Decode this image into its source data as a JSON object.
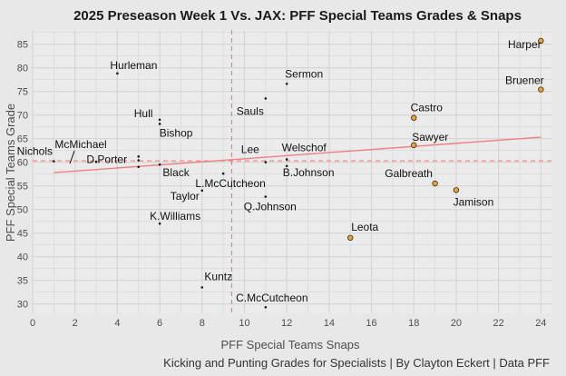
{
  "chart_data": {
    "type": "scatter",
    "title": "2025 Preseason Week 1 Vs. JAX: PFF Special Teams Grades & Snaps",
    "xlabel": "PFF Special Teams Snaps",
    "ylabel": "PFF Special Teams Grade",
    "caption": "Kicking and Punting Grades for Specialists | By Clayton Eckert | Data PFF",
    "xlim": [
      0,
      24.5
    ],
    "ylim": [
      28,
      88
    ],
    "xticks": [
      "0",
      "2",
      "4",
      "6",
      "8",
      "10",
      "12",
      "14",
      "16",
      "18",
      "20",
      "22",
      "24"
    ],
    "yticks": [
      "30",
      "35",
      "40",
      "45",
      "50",
      "55",
      "60",
      "65",
      "70",
      "75",
      "80",
      "85"
    ],
    "grid": true,
    "points": [
      {
        "label": "Harper",
        "x": 24,
        "y": 85.7,
        "specialist": true
      },
      {
        "label": "Bruener",
        "x": 24,
        "y": 75.4,
        "specialist": true
      },
      {
        "label": "Castro",
        "x": 18,
        "y": 69.4,
        "specialist": true
      },
      {
        "label": "Sawyer",
        "x": 18,
        "y": 63.6,
        "specialist": true
      },
      {
        "label": "Galbreath",
        "x": 19,
        "y": 55.5,
        "specialist": true
      },
      {
        "label": "Jamison",
        "x": 20,
        "y": 54.1,
        "specialist": true
      },
      {
        "label": "Leota",
        "x": 15,
        "y": 44.0,
        "specialist": true
      },
      {
        "label": "Hurleman",
        "x": 4,
        "y": 78.8,
        "specialist": false
      },
      {
        "label": "Sermon",
        "x": 12,
        "y": 76.6,
        "specialist": false
      },
      {
        "label": "Sauls",
        "x": 11,
        "y": 73.5,
        "specialist": false
      },
      {
        "label": "Hull",
        "x": 6,
        "y": 69.0,
        "specialist": false
      },
      {
        "label": "Bishop",
        "x": 6,
        "y": 68.1,
        "specialist": false
      },
      {
        "label": "Nichols",
        "x": 1,
        "y": 60.2,
        "specialist": false
      },
      {
        "label": "McMichael",
        "x": 3,
        "y": 60.1,
        "specialist": false
      },
      {
        "label": "D.Porter",
        "x": 5,
        "y": 61.2,
        "specialist": false
      },
      {
        "label": "",
        "x": 5,
        "y": 60.4,
        "specialist": false
      },
      {
        "label": "",
        "x": 5,
        "y": 59.0,
        "specialist": false
      },
      {
        "label": "Black",
        "x": 6,
        "y": 59.5,
        "specialist": false
      },
      {
        "label": "Lee",
        "x": 11,
        "y": 60.0,
        "specialist": false
      },
      {
        "label": "Welschof",
        "x": 12,
        "y": 60.6,
        "specialist": false
      },
      {
        "label": "B.Johnson",
        "x": 12,
        "y": 59.2,
        "specialist": false
      },
      {
        "label": "L.McCutcheon",
        "x": 9,
        "y": 57.6,
        "specialist": false
      },
      {
        "label": "Taylor",
        "x": 8,
        "y": 54.0,
        "specialist": false
      },
      {
        "label": "Q.Johnson",
        "x": 11,
        "y": 52.7,
        "specialist": false
      },
      {
        "label": "K.Williams",
        "x": 6,
        "y": 47.0,
        "specialist": false
      },
      {
        "label": "Kuntz",
        "x": 8,
        "y": 33.5,
        "specialist": false
      },
      {
        "label": "C.McCutcheon",
        "x": 11,
        "y": 29.3,
        "specialist": false
      }
    ],
    "mean_lines": {
      "x": 9.4,
      "y": 60.3
    },
    "trend_line": {
      "x": [
        1,
        24
      ],
      "y": [
        57.8,
        65.3
      ]
    },
    "colors": {
      "panel": "#ebebeb",
      "grid": "#d6d6d6",
      "specialist_fill": "#e8a33a",
      "dot": "#1a1a1a",
      "mean_line": "#f08080",
      "trend_line": "#f08080"
    }
  }
}
